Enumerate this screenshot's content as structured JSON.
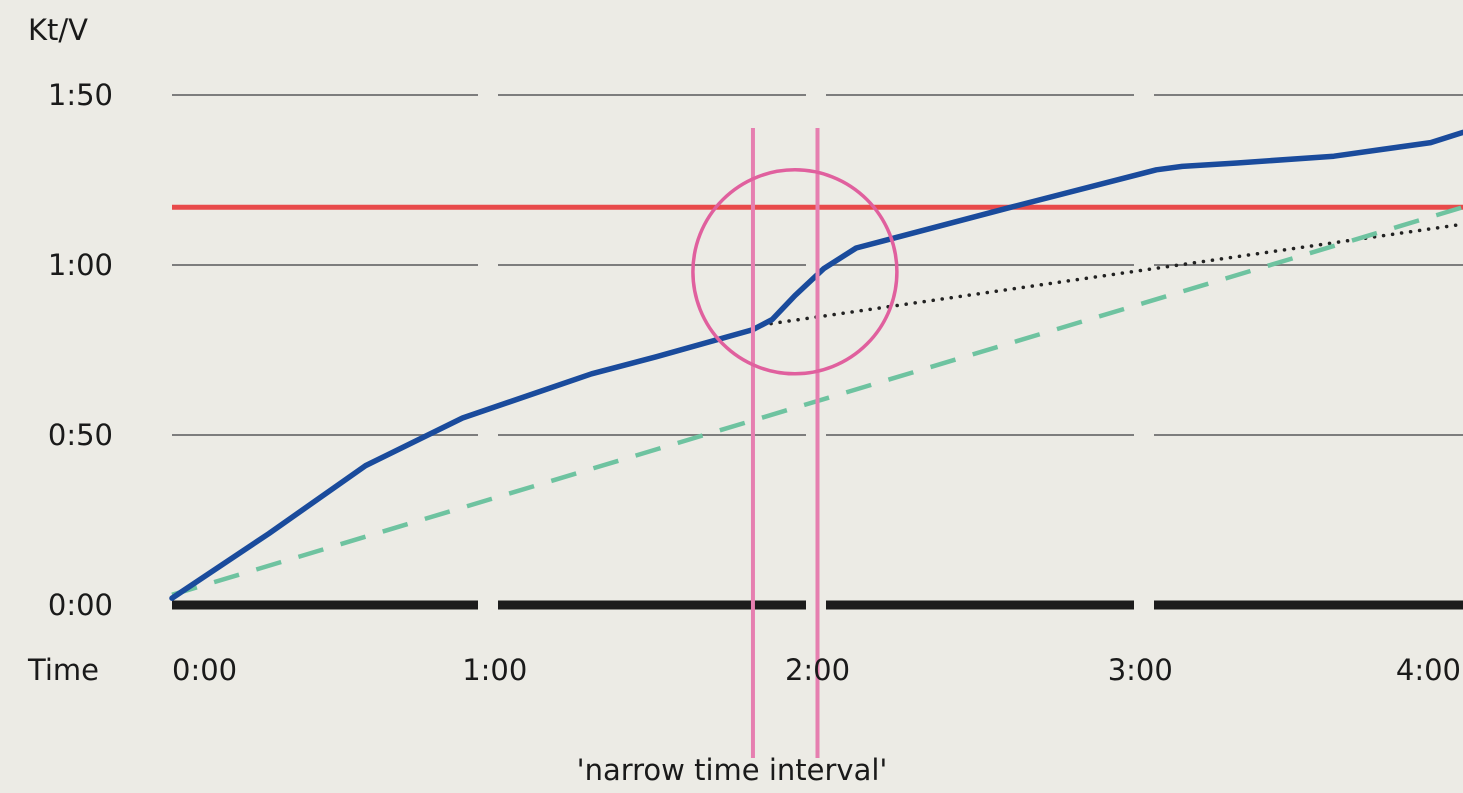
{
  "chart_data": {
    "type": "line",
    "ylabel": "Kt/V",
    "xlabel": "Time",
    "annotation": "'narrow time interval'",
    "x_ticks": [
      "0:00",
      "1:00",
      "2:00",
      "3:00",
      "4:00"
    ],
    "y_ticks": [
      "0:00",
      "0:50",
      "1:00",
      "1:50"
    ],
    "xlim": [
      0,
      4
    ],
    "ylim": [
      0,
      1.5
    ],
    "target_line": {
      "value": 1.17,
      "color": "#e84a4a"
    },
    "interval_markers": {
      "x": [
        1.8,
        2.0
      ],
      "color": "#e67fb0"
    },
    "highlight_circle": {
      "x": 1.93,
      "y": 0.98,
      "color": "#e0609e"
    },
    "series": [
      {
        "style": "solid",
        "color": "#1a4b9c",
        "points": [
          [
            0,
            0.02
          ],
          [
            0.3,
            0.21
          ],
          [
            0.6,
            0.41
          ],
          [
            0.9,
            0.55
          ],
          [
            1.3,
            0.68
          ],
          [
            1.5,
            0.73
          ],
          [
            1.8,
            0.81
          ],
          [
            1.86,
            0.84
          ],
          [
            1.93,
            0.91
          ],
          [
            2.02,
            0.99
          ],
          [
            2.12,
            1.05
          ],
          [
            2.6,
            1.17
          ],
          [
            3.05,
            1.28
          ],
          [
            3.13,
            1.29
          ],
          [
            3.3,
            1.3
          ],
          [
            3.6,
            1.32
          ],
          [
            3.75,
            1.34
          ],
          [
            3.9,
            1.36
          ],
          [
            4.0,
            1.39
          ]
        ]
      },
      {
        "style": "dotted",
        "color": "#222222",
        "points": [
          [
            1.8,
            0.82
          ],
          [
            4.0,
            1.12
          ]
        ]
      },
      {
        "style": "dashed",
        "color": "#6ec3a0",
        "points": [
          [
            0,
            0.03
          ],
          [
            4.0,
            1.17
          ]
        ]
      }
    ]
  }
}
